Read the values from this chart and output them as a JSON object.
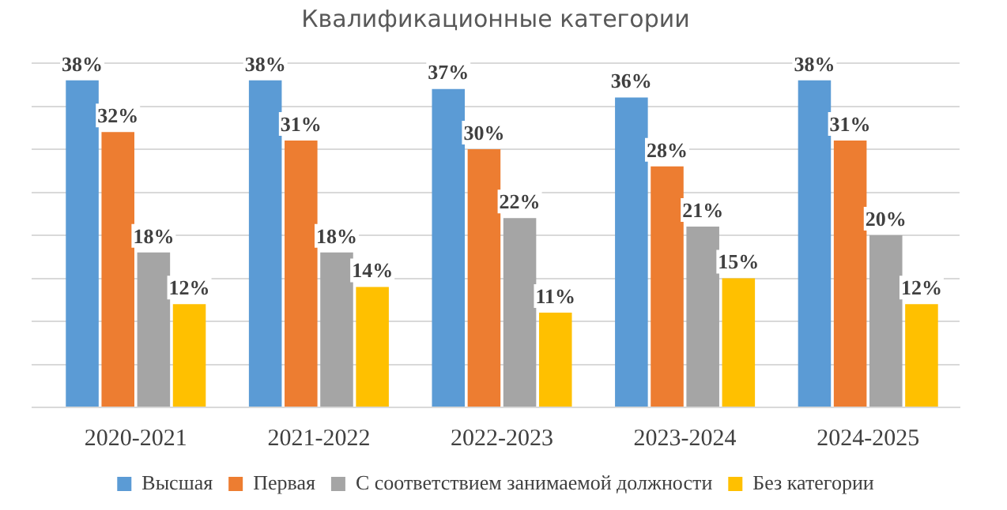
{
  "chart_data": {
    "type": "bar",
    "title": "Квалификационные категории",
    "categories": [
      "2020-2021",
      "2021-2022",
      "2022-2023",
      "2023-2024",
      "2024-2025"
    ],
    "series": [
      {
        "name": "Высшая",
        "color": "#5b9bd5",
        "values": [
          38,
          38,
          37,
          36,
          38
        ],
        "value_labels": [
          "38%",
          "38%",
          "37%",
          "36%",
          "38%"
        ]
      },
      {
        "name": "Первая",
        "color": "#ed7d31",
        "values": [
          32,
          31,
          30,
          28,
          31
        ],
        "value_labels": [
          "32%",
          "31%",
          "30%",
          "28%",
          "31%"
        ]
      },
      {
        "name": "С соответствием занимаемой должности",
        "color": "#a5a5a5",
        "values": [
          18,
          18,
          22,
          21,
          20
        ],
        "value_labels": [
          "18%",
          "18%",
          "22%",
          "21%",
          "20%"
        ]
      },
      {
        "name": "Без категории",
        "color": "#ffc000",
        "values": [
          12,
          14,
          11,
          15,
          12
        ],
        "value_labels": [
          "12%",
          "14%",
          "11%",
          "15%",
          "12%"
        ]
      }
    ],
    "ylim": [
      0,
      40
    ],
    "yticks": [
      {
        "value": 0,
        "label": null
      },
      {
        "value": 5,
        "label": null
      },
      {
        "value": 10,
        "label": null
      },
      {
        "value": 15,
        "label": null
      },
      {
        "value": 20,
        "label": null
      },
      {
        "value": 25,
        "label": null
      },
      {
        "value": 30,
        "label": null
      },
      {
        "value": 35,
        "label": null
      },
      {
        "value": 40,
        "label": null
      }
    ],
    "grid": "y",
    "tick_labels": "x",
    "legend": "bottom"
  }
}
